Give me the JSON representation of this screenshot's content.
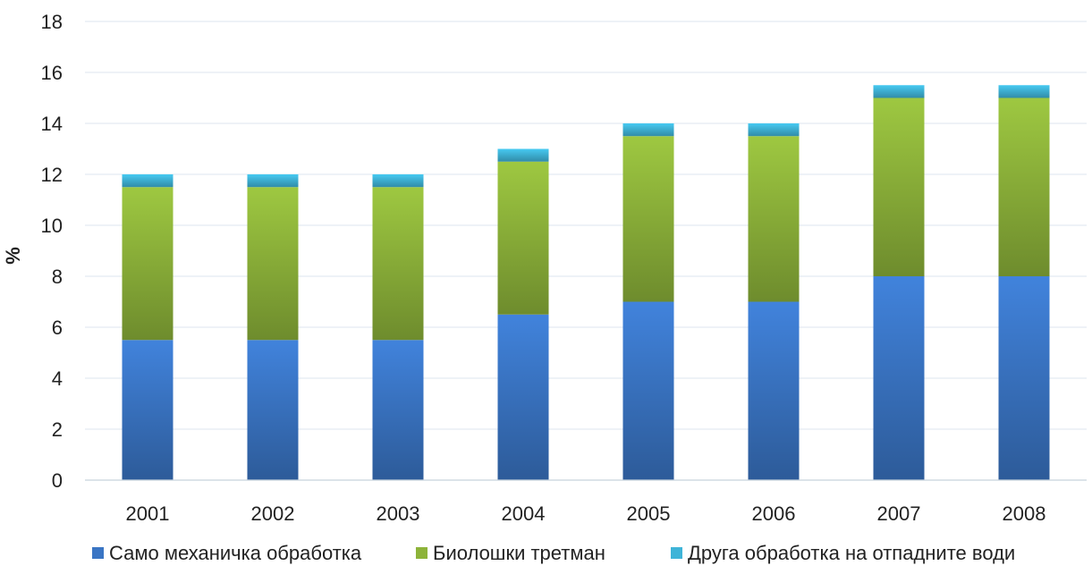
{
  "chart_data": {
    "type": "bar",
    "stacked": true,
    "categories": [
      "2001",
      "2002",
      "2003",
      "2004",
      "2005",
      "2006",
      "2007",
      "2008"
    ],
    "series": [
      {
        "name": "Само механичка обработка",
        "color": "#3a75c4",
        "values": [
          5.5,
          5.5,
          5.5,
          6.5,
          7,
          7,
          8,
          8
        ]
      },
      {
        "name": "Биолошки третман",
        "color": "#8db33a",
        "values": [
          6,
          6,
          6,
          6,
          6.5,
          6.5,
          7,
          7
        ]
      },
      {
        "name": "Друга обработка на отпадните води",
        "color": "#3fb4d8",
        "values": [
          0.5,
          0.5,
          0.5,
          0.5,
          0.5,
          0.5,
          0.5,
          0.5
        ]
      }
    ],
    "ylabel": "%",
    "xlabel": "",
    "ylim": [
      0,
      18
    ],
    "yticks": [
      0,
      2,
      4,
      6,
      8,
      10,
      12,
      14,
      16,
      18
    ],
    "grid": true,
    "legend_position": "bottom"
  }
}
